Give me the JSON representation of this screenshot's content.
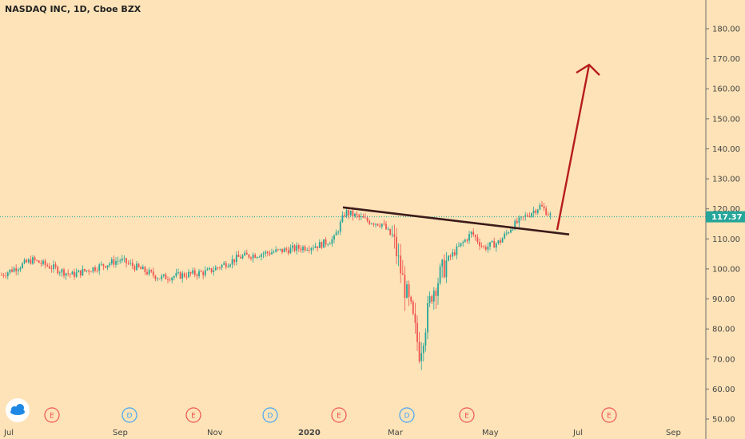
{
  "chart_data": {
    "type": "candlestick",
    "title": "NASDAQ INC, 1D, Cboe BZX",
    "y_axis": {
      "position": "right",
      "range": [
        48,
        188
      ],
      "ticks": [
        "50.00",
        "60.00",
        "70.00",
        "80.00",
        "90.00",
        "100.00",
        "110.00",
        "120.00",
        "130.00",
        "140.00",
        "150.00",
        "160.00",
        "170.00",
        "180.00"
      ]
    },
    "x_axis": {
      "ticks": [
        {
          "label": "Jul",
          "bold": false
        },
        {
          "label": "Sep",
          "bold": false
        },
        {
          "label": "Nov",
          "bold": false
        },
        {
          "label": "2020",
          "bold": true
        },
        {
          "label": "Mar",
          "bold": false
        },
        {
          "label": "May",
          "bold": false
        },
        {
          "label": "Jul",
          "bold": false
        },
        {
          "label": "Sep",
          "bold": false
        }
      ]
    },
    "last_price": {
      "value": 117.37,
      "label": "117.37",
      "color": "#26a69a"
    },
    "colors": {
      "up": "#26a69a",
      "down": "#ef5350",
      "trendline": "#3b1a1a",
      "arrow": "#b71c1c",
      "background": "#fde3b7"
    },
    "key_levels": {
      "start": 98,
      "dec_high": 109,
      "jan_peak": 119,
      "low": 72,
      "may_high": 112,
      "june_high": 121
    },
    "trendline": {
      "from": {
        "date": "Jan 2020",
        "y": 120.5
      },
      "to": {
        "date": "Jun 2020",
        "y": 111.5
      }
    },
    "projection_arrow": {
      "from": {
        "date": "Jun 2020",
        "y": 113
      },
      "to": {
        "date": "Jul 2020",
        "y": 168
      }
    },
    "event_badges": [
      {
        "letter": "E",
        "type": "earnings",
        "color": "#ef5350"
      },
      {
        "letter": "D",
        "type": "dividend",
        "color": "#42a5f5"
      },
      {
        "letter": "E",
        "type": "earnings",
        "color": "#ef5350"
      },
      {
        "letter": "D",
        "type": "dividend",
        "color": "#42a5f5"
      },
      {
        "letter": "E",
        "type": "earnings",
        "color": "#ef5350"
      },
      {
        "letter": "D",
        "type": "dividend",
        "color": "#42a5f5"
      },
      {
        "letter": "E",
        "type": "earnings",
        "color": "#ef5350"
      },
      {
        "letter": "E",
        "type": "earnings",
        "color": "#ef5350"
      }
    ]
  },
  "logo": {
    "icon": "cloud-icon"
  }
}
